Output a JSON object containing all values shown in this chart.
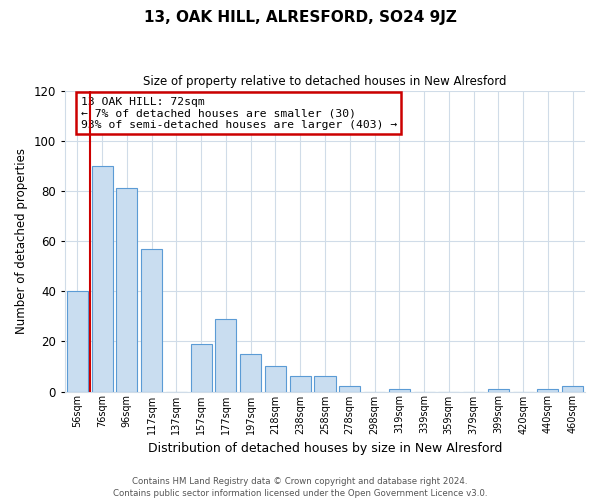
{
  "title": "13, OAK HILL, ALRESFORD, SO24 9JZ",
  "subtitle": "Size of property relative to detached houses in New Alresford",
  "xlabel": "Distribution of detached houses by size in New Alresford",
  "ylabel": "Number of detached properties",
  "bar_labels": [
    "56sqm",
    "76sqm",
    "96sqm",
    "117sqm",
    "137sqm",
    "157sqm",
    "177sqm",
    "197sqm",
    "218sqm",
    "238sqm",
    "258sqm",
    "278sqm",
    "298sqm",
    "319sqm",
    "339sqm",
    "359sqm",
    "379sqm",
    "399sqm",
    "420sqm",
    "440sqm",
    "460sqm"
  ],
  "bar_values": [
    40,
    90,
    81,
    57,
    0,
    19,
    29,
    15,
    10,
    6,
    6,
    2,
    0,
    1,
    0,
    0,
    0,
    1,
    0,
    1,
    2
  ],
  "bar_color": "#c9ddf0",
  "bar_edge_color": "#5b9bd5",
  "highlight_color": "#cc0000",
  "annotation_title": "13 OAK HILL: 72sqm",
  "annotation_line1": "← 7% of detached houses are smaller (30)",
  "annotation_line2": "93% of semi-detached houses are larger (403) →",
  "annotation_box_color": "#ffffff",
  "annotation_box_edge": "#cc0000",
  "ylim": [
    0,
    120
  ],
  "yticks": [
    0,
    20,
    40,
    60,
    80,
    100,
    120
  ],
  "footer1": "Contains HM Land Registry data © Crown copyright and database right 2024.",
  "footer2": "Contains public sector information licensed under the Open Government Licence v3.0.",
  "grid_color": "#d0dce8",
  "bg_color": "#ffffff"
}
